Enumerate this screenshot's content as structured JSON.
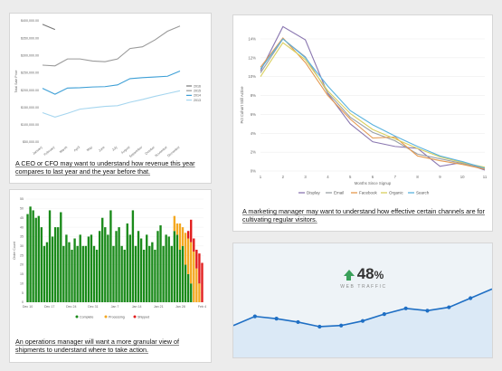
{
  "captions": {
    "revenue": "A CEO or CFO may want to understand how revenue this year compares to last year and the year before that.",
    "marketing": "A marketing manager may want to understand how effective certain channels are for cultivating regular visitors.",
    "operations": "An operations manager will want a more granular view of shipments to understand where to take action."
  },
  "traffic": {
    "value": "48",
    "unit": "%",
    "label": "WEB TRAFFIC"
  },
  "chart_data": [
    {
      "type": "line",
      "ylabel": "Total Sale Price",
      "categories": [
        "January",
        "February",
        "March",
        "April",
        "May",
        "June",
        "July",
        "August",
        "September",
        "October",
        "November",
        "December"
      ],
      "ylim": [
        50000,
        400000
      ],
      "yticks": [
        "$50,000.00",
        "$100,000.00",
        "$150,000.00",
        "$200,000.00",
        "$250,000.00",
        "$300,000.00",
        "$350,000.00",
        "$400,000.00"
      ],
      "legend_position": "right",
      "colors": [
        "#777777",
        "#9a9a9a",
        "#3d9fd6",
        "#a6d6ef"
      ],
      "series": [
        {
          "name": "2016",
          "values": [
            390000,
            375000,
            null,
            null,
            null,
            null,
            null,
            null,
            null,
            null,
            null,
            null
          ]
        },
        {
          "name": "2015",
          "values": [
            272000,
            270000,
            290000,
            290000,
            284000,
            282000,
            290000,
            320000,
            325000,
            345000,
            370000,
            385000
          ]
        },
        {
          "name": "2014",
          "values": [
            205000,
            188000,
            206000,
            207000,
            209000,
            210000,
            215000,
            233000,
            236000,
            238000,
            240000,
            255000
          ]
        },
        {
          "name": "2013",
          "values": [
            135000,
            122000,
            133000,
            145000,
            149000,
            153000,
            155000,
            165000,
            173000,
            182000,
            190000,
            198000
          ]
        }
      ]
    },
    {
      "type": "line",
      "xlabel": "Months Since Signup",
      "ylabel": "Pct Cohort Still Active",
      "x": [
        1,
        2,
        3,
        4,
        5,
        6,
        7,
        8,
        9,
        10,
        11
      ],
      "xlim": [
        1,
        11
      ],
      "ylim": [
        0,
        14
      ],
      "yticks": [
        "0%",
        "2%",
        "4%",
        "6%",
        "8%",
        "10%",
        "12%",
        "14%"
      ],
      "legend_position": "bottom",
      "series": [
        {
          "name": "Display",
          "color": "#8a77b0",
          "values": [
            10.6,
            15.3,
            13.9,
            8.2,
            5.0,
            3.1,
            2.6,
            2.4,
            0.5,
            0.9,
            0.1
          ]
        },
        {
          "name": "Email",
          "color": "#9aa0a6",
          "values": [
            10.4,
            14.0,
            12.1,
            8.3,
            5.7,
            4.1,
            3.2,
            1.8,
            1.3,
            0.8,
            0.3
          ]
        },
        {
          "name": "Facebook",
          "color": "#e4994f",
          "values": [
            11.0,
            14.1,
            11.5,
            8.0,
            5.5,
            3.5,
            3.6,
            1.6,
            1.1,
            0.7,
            0.2
          ]
        },
        {
          "name": "Organic",
          "color": "#d9cf5e",
          "values": [
            10.0,
            13.6,
            11.8,
            8.5,
            6.1,
            4.4,
            3.4,
            2.4,
            1.5,
            0.9,
            0.4
          ]
        },
        {
          "name": "Search",
          "color": "#5ab2de",
          "values": [
            10.8,
            14.0,
            12.0,
            9.0,
            6.4,
            4.9,
            3.7,
            2.6,
            1.6,
            1.0,
            0.3
          ]
        }
      ]
    },
    {
      "type": "bar",
      "stacked": true,
      "ylabel": "Order Count",
      "ylim": [
        0,
        55
      ],
      "yticks": [
        "0",
        "5",
        "10",
        "15",
        "20",
        "25",
        "30",
        "35",
        "40",
        "45",
        "50",
        "55"
      ],
      "xticks": [
        "Dec 10",
        "Dec 17",
        "Dec 24",
        "Dec 31",
        "Jan 7",
        "Jan 14",
        "Jan 21",
        "Jan 28",
        "Feb 4"
      ],
      "legend_position": "bottom",
      "series": [
        {
          "name": "Complete",
          "color": "#1a8a1a",
          "values": [
            47,
            51,
            49,
            45,
            46,
            40,
            30,
            32,
            49,
            35,
            40,
            40,
            48,
            30,
            36,
            32,
            28,
            34,
            30,
            36,
            30,
            30,
            35,
            36,
            30,
            28,
            38,
            45,
            40,
            36,
            49,
            30,
            38,
            40,
            30,
            28,
            42,
            36,
            49,
            30,
            38,
            34,
            28,
            36,
            30,
            32,
            28,
            38,
            41,
            30,
            36,
            35,
            30,
            38,
            36,
            28,
            30,
            20,
            15,
            10,
            0,
            0,
            0,
            0
          ]
        },
        {
          "name": "Processing",
          "color": "#f4a821",
          "values": [
            0,
            0,
            0,
            0,
            0,
            0,
            0,
            0,
            0,
            0,
            0,
            0,
            0,
            0,
            0,
            0,
            0,
            0,
            0,
            0,
            0,
            0,
            0,
            0,
            0,
            0,
            0,
            0,
            0,
            0,
            0,
            0,
            0,
            0,
            0,
            0,
            0,
            0,
            0,
            0,
            0,
            0,
            0,
            0,
            0,
            0,
            0,
            0,
            0,
            0,
            0,
            0,
            0,
            8,
            6,
            14,
            10,
            17,
            19,
            22,
            27,
            18,
            10,
            0
          ]
        },
        {
          "name": "Shipped",
          "color": "#e21d1d",
          "values": [
            0,
            0,
            0,
            0,
            0,
            0,
            0,
            0,
            0,
            0,
            0,
            0,
            0,
            0,
            0,
            0,
            0,
            0,
            0,
            0,
            0,
            0,
            0,
            0,
            0,
            0,
            0,
            0,
            0,
            0,
            0,
            0,
            0,
            0,
            0,
            0,
            0,
            0,
            0,
            0,
            0,
            0,
            0,
            0,
            0,
            0,
            0,
            0,
            0,
            0,
            0,
            0,
            0,
            0,
            0,
            0,
            0,
            0,
            4,
            12,
            7,
            10,
            16,
            21
          ]
        }
      ]
    },
    {
      "type": "line",
      "series": [
        {
          "values": [
            0.28,
            0.36,
            0.34,
            0.31,
            0.27,
            0.28,
            0.32,
            0.38,
            0.43,
            0.41,
            0.44,
            0.52,
            0.6
          ]
        }
      ]
    }
  ]
}
